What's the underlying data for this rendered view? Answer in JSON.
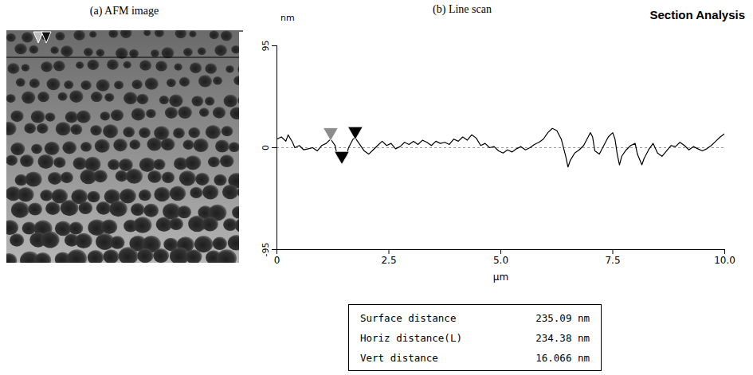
{
  "chart_data": {
    "type": "line",
    "title": "(b) Line scan",
    "heading": "Section Analysis",
    "panel_a": {
      "title": "(a) AFM image"
    },
    "xlabel": "µm",
    "ylabel": "nm",
    "xlim": [
      0,
      10
    ],
    "xticks": [
      0,
      2.5,
      {
        "value": 5,
        "label": "5.0"
      },
      7.5,
      {
        "value": 10,
        "label": "10.0"
      }
    ],
    "ylim": [
      -95,
      95
    ],
    "yticks": [
      -95,
      0,
      95
    ],
    "baseline": 0,
    "color": "#000000",
    "x": [
      0,
      0.1,
      0.2,
      0.25,
      0.35,
      0.4,
      0.5,
      0.6,
      0.7,
      0.8,
      0.9,
      1.0,
      1.1,
      1.2,
      1.3,
      1.35,
      1.45,
      1.55,
      1.6,
      1.7,
      1.75,
      1.85,
      1.95,
      2.05,
      2.15,
      2.25,
      2.35,
      2.45,
      2.55,
      2.65,
      2.75,
      2.85,
      2.95,
      3.05,
      3.15,
      3.25,
      3.35,
      3.45,
      3.55,
      3.65,
      3.75,
      3.85,
      3.95,
      4.05,
      4.15,
      4.25,
      4.35,
      4.45,
      4.55,
      4.65,
      4.75,
      4.85,
      4.95,
      5.05,
      5.15,
      5.25,
      5.35,
      5.45,
      5.55,
      5.65,
      5.75,
      5.85,
      5.95,
      6.05,
      6.15,
      6.25,
      6.35,
      6.45,
      6.5,
      6.55,
      6.65,
      6.75,
      6.85,
      6.95,
      7.0,
      7.05,
      7.1,
      7.2,
      7.3,
      7.4,
      7.5,
      7.55,
      7.6,
      7.65,
      7.7,
      7.8,
      7.9,
      8.0,
      8.05,
      8.15,
      8.2,
      8.3,
      8.4,
      8.5,
      8.6,
      8.7,
      8.8,
      8.9,
      9.0,
      9.1,
      9.2,
      9.3,
      9.4,
      9.5,
      9.6,
      9.7,
      9.8,
      9.9,
      10.0
    ],
    "values": [
      8,
      10,
      6,
      12,
      5,
      0,
      2,
      -2,
      -1,
      0,
      -3,
      2,
      4,
      8,
      2,
      -8,
      -14,
      -8,
      0,
      8,
      9,
      3,
      -3,
      -6,
      -2,
      2,
      6,
      2,
      4,
      -1,
      1,
      5,
      3,
      6,
      3,
      7,
      5,
      2,
      6,
      4,
      5,
      3,
      8,
      6,
      10,
      7,
      12,
      9,
      2,
      4,
      0,
      1,
      -3,
      -5,
      -2,
      -4,
      -1,
      1,
      -2,
      0,
      3,
      5,
      8,
      14,
      18,
      16,
      8,
      -8,
      -18,
      -12,
      -5,
      -2,
      2,
      10,
      14,
      10,
      -3,
      -6,
      2,
      10,
      14,
      8,
      -6,
      -16,
      -8,
      -2,
      2,
      4,
      -6,
      -16,
      -10,
      -2,
      4,
      -5,
      -8,
      -3,
      2,
      1,
      5,
      2,
      -2,
      1,
      -1,
      -3,
      -1,
      2,
      6,
      10,
      13
    ],
    "markers": [
      {
        "x": 1.2,
        "y": 10,
        "color": "#8c8c8c"
      },
      {
        "x": 1.45,
        "y": -12,
        "color": "#000000"
      },
      {
        "x": 1.75,
        "y": 11,
        "color": "#000000"
      }
    ],
    "measurements": [
      {
        "label": "Surface distance",
        "value": 235.09,
        "unit": "nm"
      },
      {
        "label": "Horiz distance(L)",
        "value": 234.38,
        "unit": "nm"
      },
      {
        "label": "Vert distance",
        "value": 16.066,
        "unit": "nm"
      }
    ]
  }
}
